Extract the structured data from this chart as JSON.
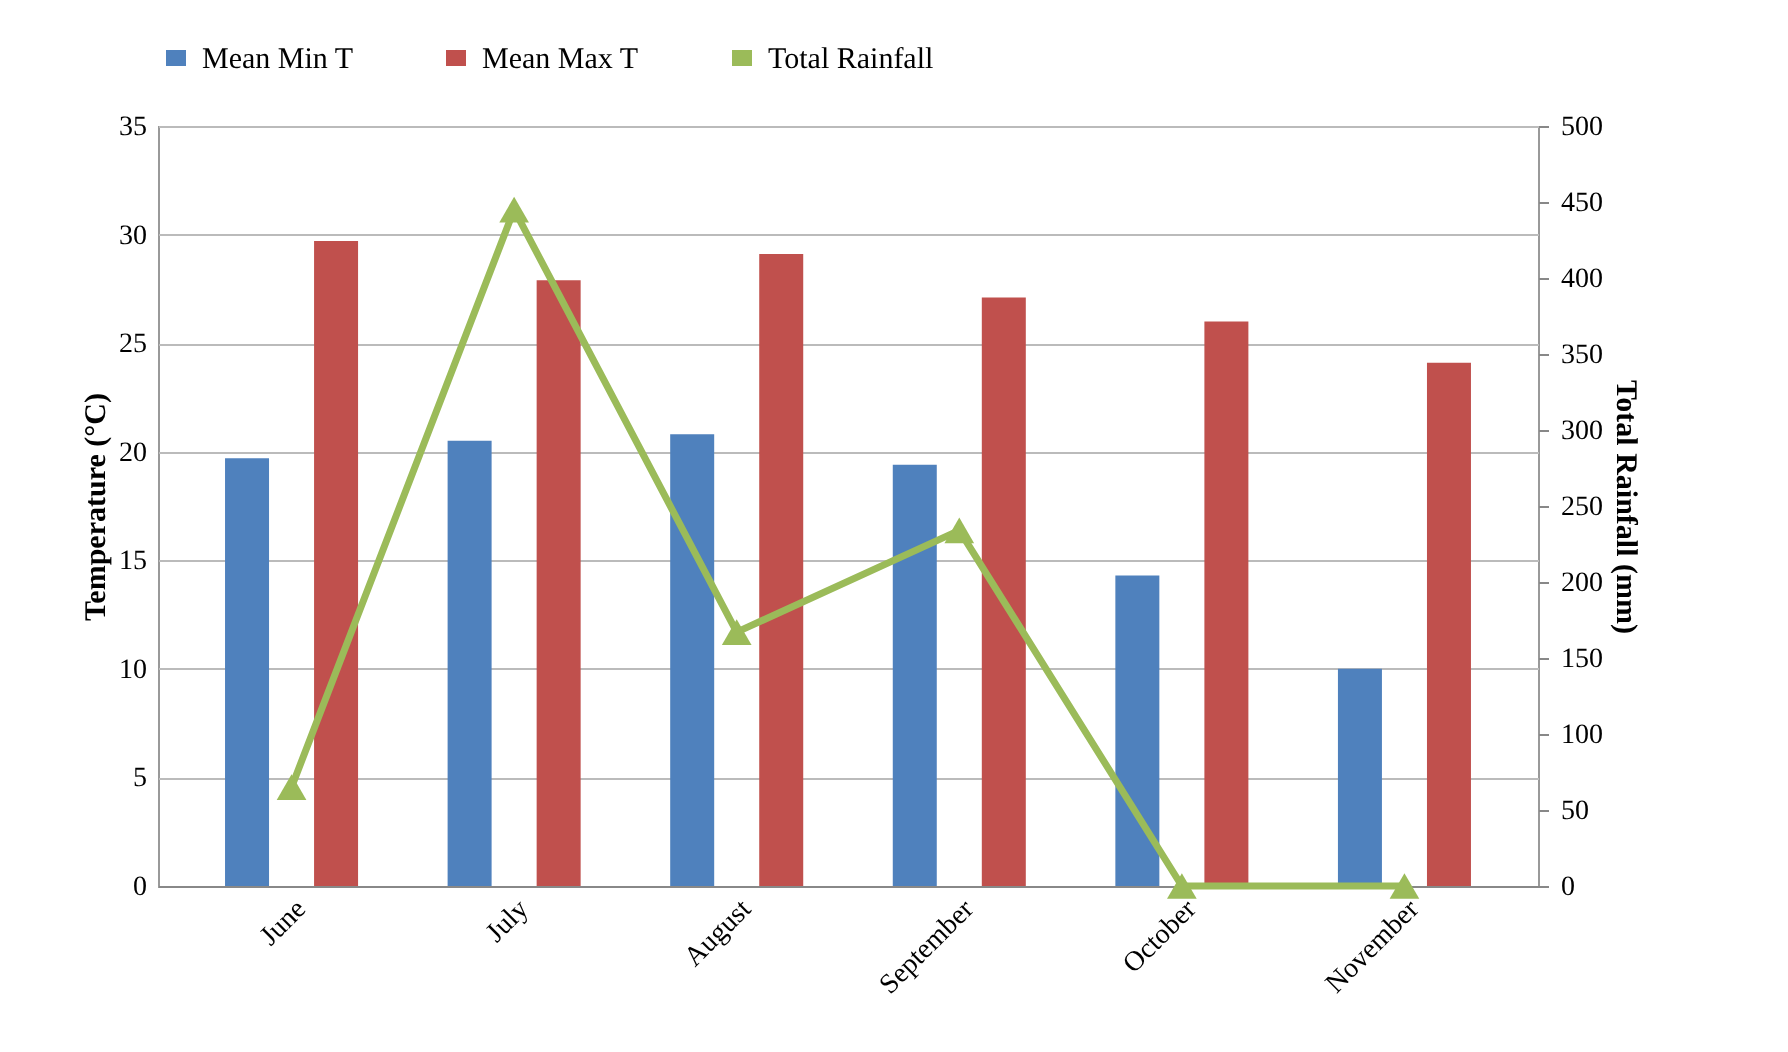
{
  "chart_data": {
    "type": "bar",
    "categories": [
      "June",
      "July",
      "August",
      "September",
      "October",
      "November"
    ],
    "series": [
      {
        "name": "Mean Min T",
        "color": "#4f81bd",
        "values": [
          19.7,
          20.5,
          20.8,
          19.4,
          14.3,
          10.0
        ]
      },
      {
        "name": "Mean Max T",
        "color": "#c0504d",
        "values": [
          29.7,
          27.9,
          29.1,
          27.1,
          26.0,
          24.1
        ]
      },
      {
        "name": "Total Rainfall",
        "color": "#9bbb59",
        "type": "line",
        "axis": "y2",
        "marker": "triangle",
        "values": [
          65,
          445,
          167,
          234,
          0,
          0
        ]
      }
    ],
    "ylabel": "Temperature (°C)",
    "y2label": "Total Rainfall (mm)",
    "ylim": [
      0,
      35
    ],
    "yticks": [
      0,
      5,
      10,
      15,
      20,
      25,
      30,
      35
    ],
    "y2lim": [
      0,
      500
    ],
    "y2ticks": [
      0,
      50,
      100,
      150,
      200,
      250,
      300,
      350,
      400,
      450,
      500
    ],
    "grid": "y",
    "legend": "top"
  }
}
